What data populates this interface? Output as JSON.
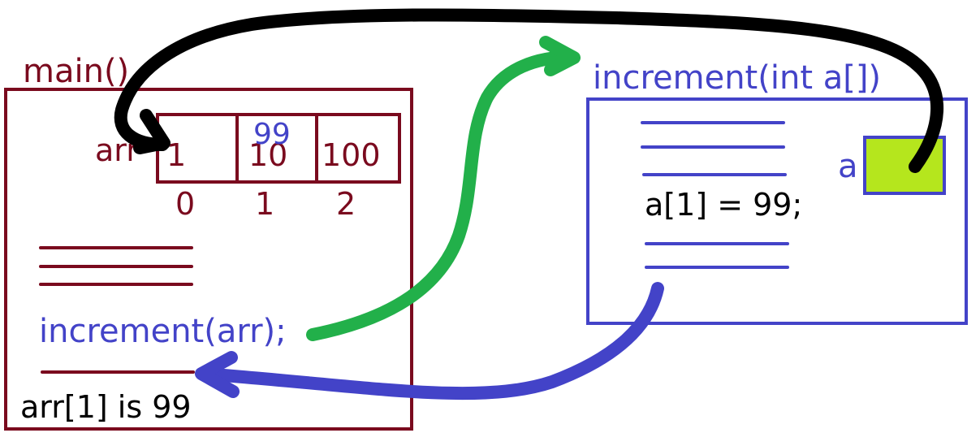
{
  "main": {
    "title": "main()",
    "array_label": "arr",
    "cells": [
      "1",
      "10",
      "100"
    ],
    "indices": [
      "0",
      "1",
      "2"
    ],
    "overwrite_value": "99",
    "call": "increment(arr);",
    "result": "arr[1] is 99"
  },
  "increment": {
    "title": "increment(int a[])",
    "param_label": "a",
    "statement": "a[1] = 99;"
  },
  "colors": {
    "maroon": "#7a0a1e",
    "blue": "#4343c8",
    "green_arrow": "#22b04a",
    "black_arrow": "#000000",
    "param_fill": "#b5e61d"
  }
}
